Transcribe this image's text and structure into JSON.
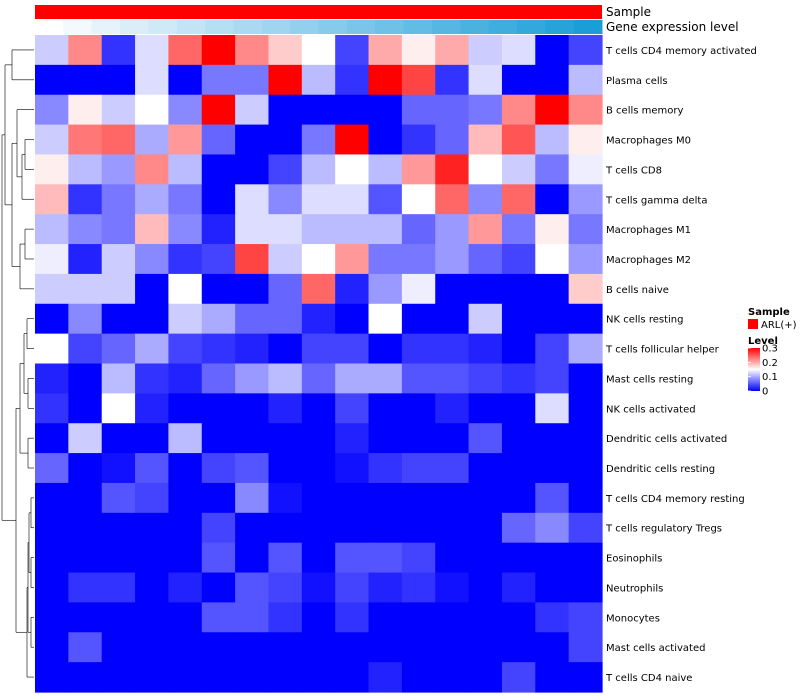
{
  "chart_data": {
    "type": "heatmap",
    "annotations": [
      {
        "name": "Sample",
        "color": "#ff0000"
      },
      {
        "name": "Gene expression level",
        "colors": [
          "#ffffff",
          "#f3f9fc",
          "#e7f3fa",
          "#dbeef8",
          "#cfe9f6",
          "#c3e4f4",
          "#b7dff2",
          "#abdaf0",
          "#9fd5ee",
          "#93d0ec",
          "#87cbea",
          "#7bc6e8",
          "#6fc1e6",
          "#63bce4",
          "#57b7e2",
          "#4bb2e0",
          "#3fadde",
          "#33a8dc",
          "#27a3da",
          "#1b9ed8"
        ]
      }
    ],
    "rows": [
      "T cells CD4 memory activated",
      "Plasma cells",
      "B cells memory",
      "Macrophages M0",
      "T cells CD8",
      "T cells gamma delta",
      "Macrophages M1",
      "Macrophages M2",
      "B cells naive",
      "NK cells resting",
      "T cells follicular helper",
      "Mast cells resting",
      "NK cells activated",
      "Dendritic cells activated",
      "Dendritic cells resting",
      "T cells CD4 memory resting",
      "T cells regulatory  Tregs",
      "Eosinophils",
      "Neutrophils",
      "Monocytes",
      "Mast cells activated",
      "T cells CD4 naive"
    ],
    "values": [
      [
        0.12,
        0.22,
        0.03,
        0.13,
        0.24,
        0.3,
        0.22,
        0.18,
        0.15,
        0.04,
        0.2,
        0.16,
        0.2,
        0.12,
        0.13,
        0.0,
        0.04
      ],
      [
        0.0,
        0.0,
        0.0,
        0.13,
        0.0,
        0.07,
        0.07,
        0.3,
        0.11,
        0.03,
        0.3,
        0.26,
        0.03,
        0.13,
        0.0,
        0.0,
        0.11
      ],
      [
        0.08,
        0.16,
        0.12,
        0.15,
        0.08,
        0.3,
        0.12,
        0.0,
        0.0,
        0.0,
        0.0,
        0.06,
        0.06,
        0.07,
        0.22,
        0.3,
        0.22
      ],
      [
        0.12,
        0.23,
        0.24,
        0.1,
        0.21,
        0.06,
        0.0,
        0.0,
        0.07,
        0.3,
        0.0,
        0.03,
        0.06,
        0.19,
        0.25,
        0.11,
        0.16
      ],
      [
        0.16,
        0.11,
        0.09,
        0.22,
        0.11,
        0.0,
        0.0,
        0.04,
        0.11,
        0.15,
        0.11,
        0.21,
        0.28,
        0.15,
        0.12,
        0.07,
        0.14
      ],
      [
        0.19,
        0.03,
        0.07,
        0.1,
        0.07,
        0.0,
        0.13,
        0.08,
        0.13,
        0.13,
        0.05,
        0.15,
        0.24,
        0.08,
        0.24,
        0.0,
        0.09
      ],
      [
        0.11,
        0.08,
        0.07,
        0.19,
        0.08,
        0.02,
        0.13,
        0.13,
        0.11,
        0.11,
        0.11,
        0.06,
        0.09,
        0.21,
        0.07,
        0.16,
        0.07
      ],
      [
        0.14,
        0.02,
        0.12,
        0.08,
        0.03,
        0.04,
        0.26,
        0.12,
        0.15,
        0.21,
        0.07,
        0.07,
        0.09,
        0.06,
        0.04,
        0.15,
        0.09
      ],
      [
        0.12,
        0.12,
        0.12,
        0.0,
        0.15,
        0.0,
        0.0,
        0.06,
        0.24,
        0.02,
        0.09,
        0.14,
        0.0,
        0.0,
        0.0,
        0.0,
        0.18
      ],
      [
        0.0,
        0.08,
        0.0,
        0.0,
        0.12,
        0.1,
        0.06,
        0.06,
        0.02,
        0.0,
        0.15,
        0.0,
        0.0,
        0.12,
        0.0,
        0.0,
        0.0
      ],
      [
        0.15,
        0.04,
        0.06,
        0.1,
        0.04,
        0.03,
        0.02,
        0.0,
        0.04,
        0.04,
        0.0,
        0.03,
        0.03,
        0.02,
        0.0,
        0.04,
        0.1
      ],
      [
        0.02,
        0.0,
        0.11,
        0.03,
        0.02,
        0.06,
        0.09,
        0.11,
        0.06,
        0.1,
        0.1,
        0.05,
        0.05,
        0.04,
        0.03,
        0.04,
        0.0
      ],
      [
        0.03,
        0.0,
        0.15,
        0.02,
        0.0,
        0.0,
        0.0,
        0.02,
        0.0,
        0.04,
        0.0,
        0.0,
        0.02,
        0.0,
        0.0,
        0.13,
        0.0
      ],
      [
        0.0,
        0.12,
        0.0,
        0.0,
        0.11,
        0.0,
        0.0,
        0.0,
        0.0,
        0.02,
        0.0,
        0.0,
        0.0,
        0.05,
        0.0,
        0.0,
        0.0
      ],
      [
        0.06,
        0.0,
        0.01,
        0.05,
        0.0,
        0.04,
        0.05,
        0.0,
        0.0,
        0.01,
        0.03,
        0.04,
        0.04,
        0.0,
        0.0,
        0.0,
        0.0
      ],
      [
        0.0,
        0.0,
        0.05,
        0.04,
        0.0,
        0.0,
        0.08,
        0.01,
        0.0,
        0.0,
        0.0,
        0.0,
        0.0,
        0.0,
        0.0,
        0.05,
        0.0
      ],
      [
        0.0,
        0.0,
        0.0,
        0.0,
        0.0,
        0.04,
        0.0,
        0.0,
        0.0,
        0.0,
        0.0,
        0.0,
        0.0,
        0.0,
        0.06,
        0.08,
        0.04
      ],
      [
        0.0,
        0.0,
        0.0,
        0.0,
        0.0,
        0.05,
        0.0,
        0.05,
        0.0,
        0.05,
        0.05,
        0.04,
        0.0,
        0.0,
        0.0,
        0.0,
        0.0
      ],
      [
        0.0,
        0.03,
        0.03,
        0.0,
        0.02,
        0.0,
        0.05,
        0.04,
        0.01,
        0.04,
        0.02,
        0.03,
        0.01,
        0.0,
        0.02,
        0.0,
        0.0
      ],
      [
        0.0,
        0.0,
        0.0,
        0.0,
        0.0,
        0.05,
        0.05,
        0.03,
        0.0,
        0.03,
        0.0,
        0.0,
        0.0,
        0.0,
        0.0,
        0.03,
        0.04
      ],
      [
        0.0,
        0.05,
        0.0,
        0.0,
        0.0,
        0.0,
        0.0,
        0.0,
        0.0,
        0.0,
        0.0,
        0.0,
        0.0,
        0.0,
        0.0,
        0.0,
        0.04
      ],
      [
        0.0,
        0.0,
        0.0,
        0.0,
        0.0,
        0.0,
        0.0,
        0.0,
        0.0,
        0.0,
        0.02,
        0.0,
        0.0,
        0.0,
        0.04,
        0.0,
        0.0
      ]
    ],
    "legend": {
      "sample_title": "Sample",
      "sample_entry": "ARL(+)",
      "sample_color": "#ff0000",
      "level_title": "Level",
      "ticks": [
        0.3,
        0.2,
        0.1,
        0
      ],
      "tick_labels": [
        "0.3",
        "0.2",
        "0.1",
        "0"
      ],
      "vmin": 0,
      "vmax": 0.3
    },
    "color_scale": {
      "low": "#0000ff",
      "mid": "#ffffff",
      "high": "#ff0000"
    }
  }
}
